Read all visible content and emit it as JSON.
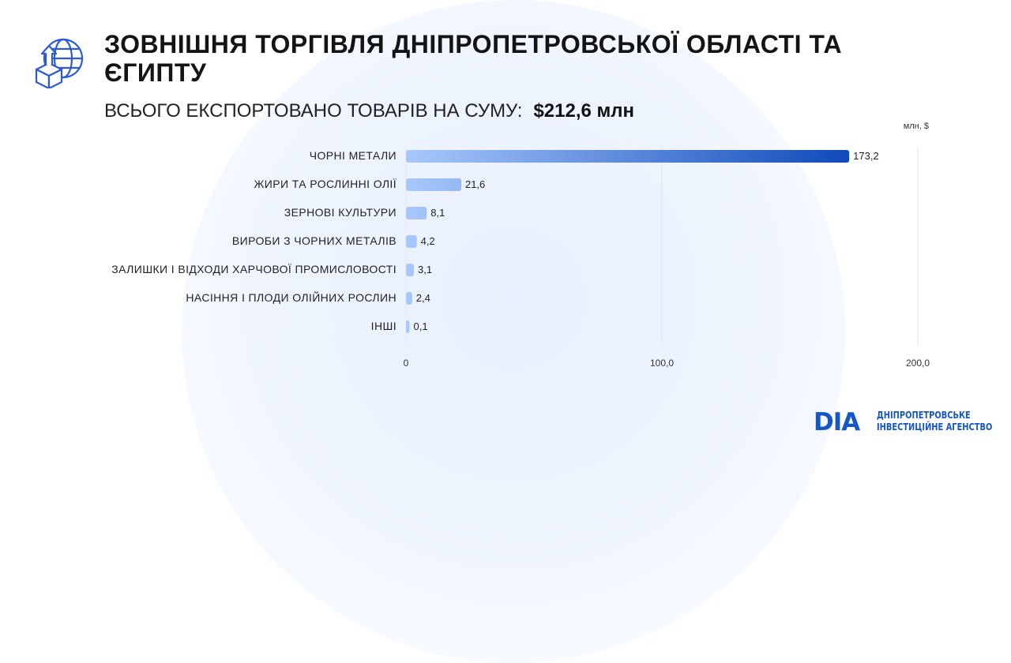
{
  "header": {
    "title": "ЗОВНІШНЯ ТОРГІВЛЯ ДНІПРОПЕТРОВСЬКОЇ ОБЛАСТІ ТА ЄГИПТУ",
    "subtitle_label": "ВСЬОГО ЕКСПОРТОВАНО ТОВАРІВ НА СУМУ:",
    "subtitle_total": "$212,6 млн",
    "icon": "globe-export-box-icon"
  },
  "chart_data": {
    "type": "bar",
    "orientation": "horizontal",
    "unit": "млн, $",
    "categories": [
      "ЧОРНІ МЕТАЛИ",
      "ЖИРИ ТА РОСЛИННІ ОЛІЇ",
      "ЗЕРНОВІ КУЛЬТУРИ",
      "ВИРОБИ З ЧОРНИХ МЕТАЛІВ",
      "ЗАЛИШКИ І ВІДХОДИ ХАРЧОВОЇ ПРОМИСЛОВОСТІ",
      "НАСІННЯ І ПЛОДИ ОЛІЙНИХ РОСЛИН",
      "ІНШІ"
    ],
    "values": [
      173.2,
      21.6,
      8.1,
      4.2,
      3.1,
      2.4,
      0.1
    ],
    "value_labels": [
      "173,2",
      "21,6",
      "8,1",
      "4,2",
      "3,1",
      "2,4",
      "0,1"
    ],
    "xlim": [
      0,
      200
    ],
    "ticks": [
      0,
      100,
      200
    ],
    "tick_labels": [
      "0",
      "100,0",
      "200,0"
    ],
    "grid": true,
    "colors": {
      "bar_start": "#a8c8fb",
      "bar_end": "#0a46b8",
      "grid": "#e3e6ec"
    }
  },
  "logo": {
    "mark": "DIA",
    "line1": "ДНІПРОПЕТРОВСЬКЕ",
    "line2": "ІНВЕСТИЦІЙНЕ АГЕНСТВО",
    "color": "#1557c9"
  }
}
